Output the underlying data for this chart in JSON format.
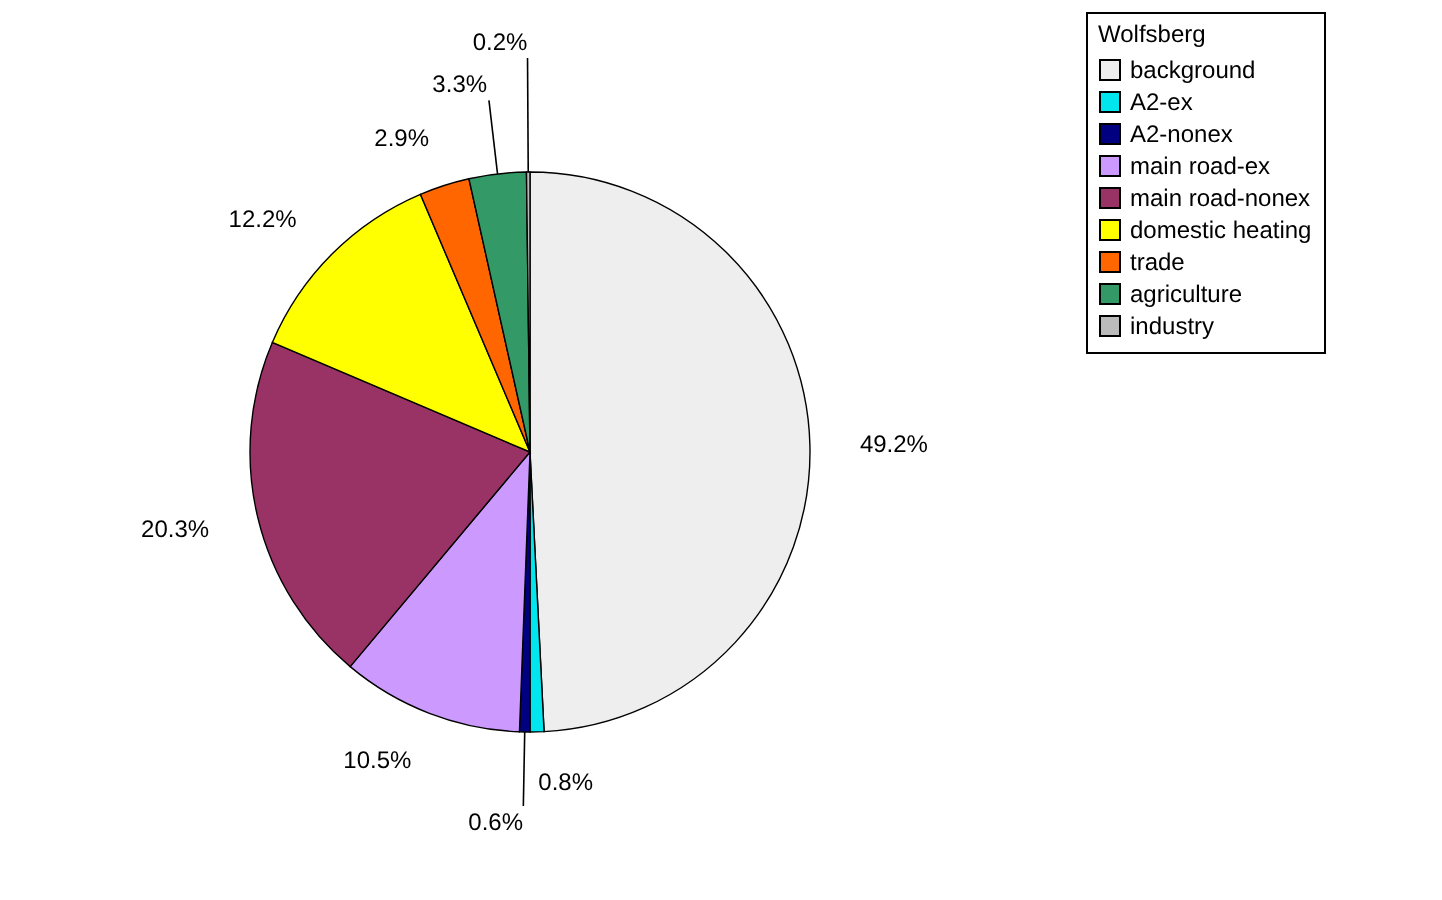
{
  "chart_data": {
    "type": "pie",
    "legend_title": "Wolfsberg",
    "legend": "right",
    "categories": [
      "background",
      "A2-ex",
      "A2-nonex",
      "main road-ex",
      "main road-nonex",
      "domestic heating",
      "trade",
      "agriculture",
      "industry"
    ],
    "values": [
      49.2,
      0.8,
      0.6,
      10.5,
      20.3,
      12.2,
      2.9,
      3.3,
      0.2
    ],
    "colors": [
      "#eeeeee",
      "#00e5ee",
      "#000080",
      "#cc99ff",
      "#993366",
      "#ffff00",
      "#ff6600",
      "#339966",
      "#bbbbbb"
    ],
    "value_labels": [
      "49.2%",
      "0.8%",
      "0.6%",
      "10.5%",
      "20.3%",
      "12.2%",
      "2.9%",
      "3.3%",
      "0.2%"
    ]
  }
}
